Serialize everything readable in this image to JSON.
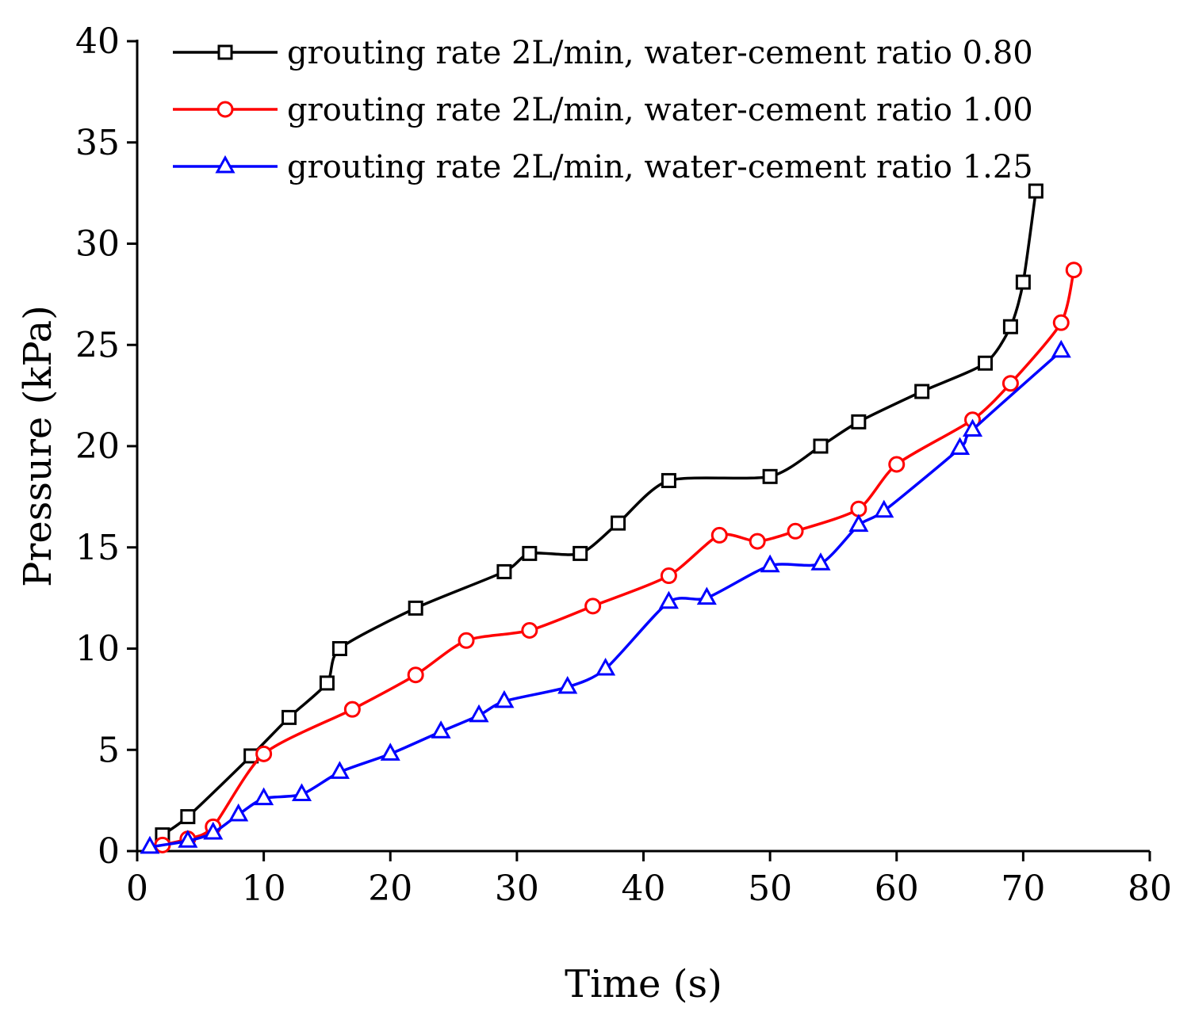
{
  "chart_data": {
    "type": "line",
    "title": "",
    "xlabel": "Time (s)",
    "ylabel": "Pressure (kPa)",
    "xlim": [
      0,
      80
    ],
    "ylim": [
      0,
      40
    ],
    "xticks": [
      "0",
      "10",
      "20",
      "30",
      "40",
      "50",
      "60",
      "70",
      "80"
    ],
    "yticks": [
      "0",
      "5",
      "10",
      "15",
      "20",
      "25",
      "30",
      "35",
      "40"
    ],
    "grid": false,
    "legend_position": "top-left",
    "series": [
      {
        "name": "grouting rate 2L/min, water-cement ratio 0.80",
        "color": "#000000",
        "marker": "square",
        "points": [
          [
            2,
            0.8
          ],
          [
            4,
            1.7
          ],
          [
            9,
            4.7
          ],
          [
            12,
            6.6
          ],
          [
            15,
            8.3
          ],
          [
            16,
            10.0
          ],
          [
            22,
            12.0
          ],
          [
            29,
            13.8
          ],
          [
            31,
            14.7
          ],
          [
            35,
            14.7
          ],
          [
            38,
            16.2
          ],
          [
            42,
            18.3
          ],
          [
            50,
            18.5
          ],
          [
            54,
            20.0
          ],
          [
            57,
            21.2
          ],
          [
            62,
            22.7
          ],
          [
            67,
            24.1
          ],
          [
            69,
            25.9
          ],
          [
            70,
            28.1
          ],
          [
            71,
            32.6
          ]
        ]
      },
      {
        "name": "grouting rate 2L/min, water-cement ratio 1.00",
        "color": "#ff0000",
        "marker": "circle",
        "points": [
          [
            2,
            0.3
          ],
          [
            4,
            0.6
          ],
          [
            6,
            1.2
          ],
          [
            10,
            4.8
          ],
          [
            17,
            7.0
          ],
          [
            22,
            8.7
          ],
          [
            26,
            10.4
          ],
          [
            31,
            10.9
          ],
          [
            36,
            12.1
          ],
          [
            42,
            13.6
          ],
          [
            46,
            15.6
          ],
          [
            49,
            15.3
          ],
          [
            52,
            15.8
          ],
          [
            57,
            16.9
          ],
          [
            60,
            19.1
          ],
          [
            66,
            21.3
          ],
          [
            69,
            23.1
          ],
          [
            73,
            26.1
          ],
          [
            74,
            28.7
          ]
        ]
      },
      {
        "name": "grouting rate 2L/min, water-cement ratio 1.25",
        "color": "#0000ff",
        "marker": "triangle",
        "points": [
          [
            1,
            0.2
          ],
          [
            4,
            0.5
          ],
          [
            6,
            0.9
          ],
          [
            8,
            1.8
          ],
          [
            10,
            2.6
          ],
          [
            13,
            2.8
          ],
          [
            16,
            3.9
          ],
          [
            20,
            4.8
          ],
          [
            24,
            5.9
          ],
          [
            27,
            6.7
          ],
          [
            29,
            7.4
          ],
          [
            34,
            8.1
          ],
          [
            37,
            9.0
          ],
          [
            42,
            12.3
          ],
          [
            45,
            12.5
          ],
          [
            50,
            14.1
          ],
          [
            54,
            14.2
          ],
          [
            57,
            16.1
          ],
          [
            59,
            16.8
          ],
          [
            65,
            19.9
          ],
          [
            66,
            20.8
          ],
          [
            73,
            24.7
          ]
        ]
      }
    ]
  }
}
